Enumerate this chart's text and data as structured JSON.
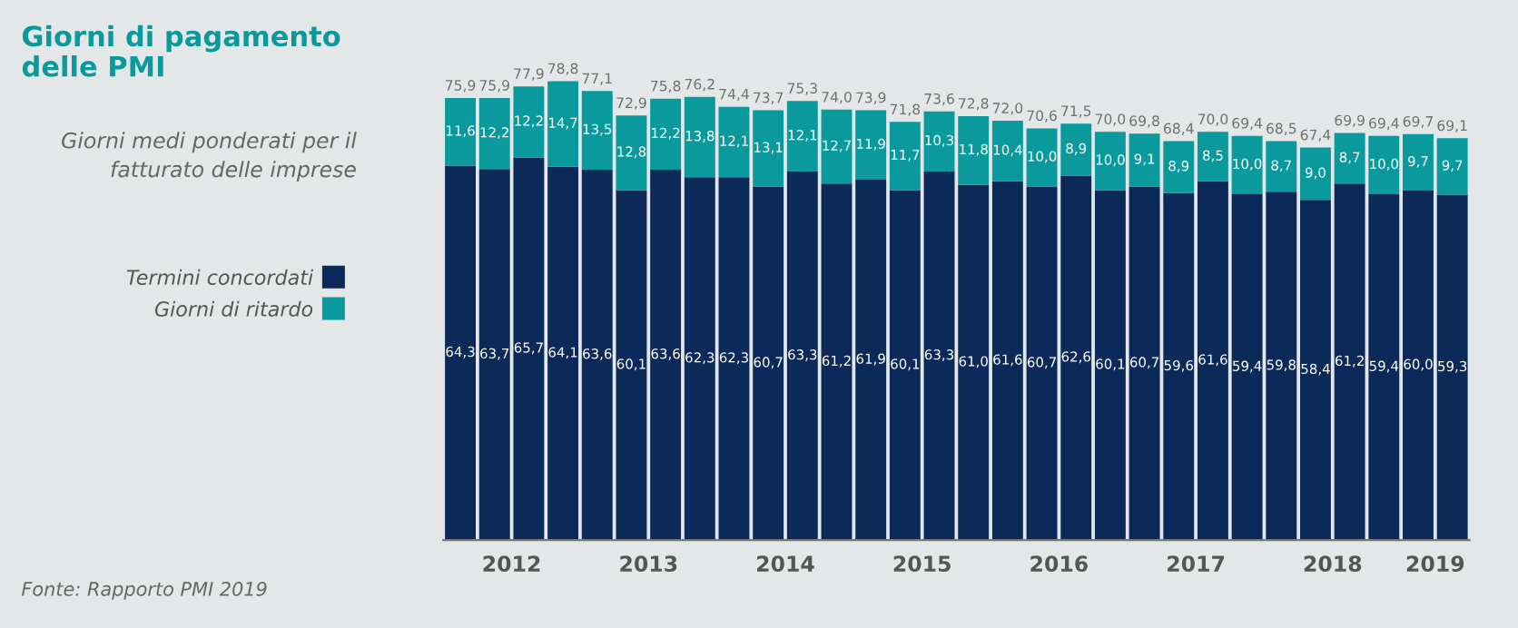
{
  "chart_data": {
    "type": "bar",
    "stacked": true,
    "title": "Giorni di pagamento\ndelle PMI",
    "subtitle": "Giorni medi ponderati per il\nfatturato delle imprese",
    "x": [
      2012.125,
      2012.375,
      2012.625,
      2012.875,
      2013.125,
      2013.375,
      2013.625,
      2013.875,
      2014.125,
      2014.375,
      2014.625,
      2014.875,
      2015.125,
      2015.375,
      2015.625,
      2015.875,
      2016.125,
      2016.375,
      2016.625,
      2016.875,
      2017.125,
      2017.375,
      2017.625,
      2017.875,
      2018.125,
      2018.375,
      2018.625,
      2018.875,
      2019.125,
      2019.375
    ],
    "xlim": [
      2012.0,
      2019.5
    ],
    "xticks": [
      {
        "value": 2012.5,
        "label": "2012"
      },
      {
        "value": 2013.5,
        "label": "2013"
      },
      {
        "value": 2014.5,
        "label": "2014"
      },
      {
        "value": 2015.5,
        "label": "2015"
      },
      {
        "value": 2016.5,
        "label": "2016"
      },
      {
        "value": 2017.5,
        "label": "2017"
      },
      {
        "value": 2018.5,
        "label": "2018"
      },
      {
        "value": 2019.25,
        "label": "2019"
      }
    ],
    "series": [
      {
        "name": "Termini concordati",
        "color": "#0b2a59",
        "values": [
          64.3,
          63.7,
          65.7,
          64.1,
          63.6,
          60.1,
          63.6,
          62.3,
          62.3,
          60.7,
          63.3,
          61.2,
          61.9,
          60.1,
          63.3,
          61.0,
          61.6,
          60.7,
          62.6,
          60.1,
          60.7,
          59.6,
          61.6,
          59.4,
          59.8,
          58.4,
          61.2,
          59.4,
          60.0,
          59.3
        ],
        "value_labels": [
          "64,3",
          "63,7",
          "65,7",
          "64,1",
          "63,6",
          "60,1",
          "63,6",
          "62,3",
          "62,3",
          "60,7",
          "63,3",
          "61,2",
          "61,9",
          "60,1",
          "63,3",
          "61,0",
          "61,6",
          "60,7",
          "62,6",
          "60,1",
          "60,7",
          "59,6",
          "61,6",
          "59,4",
          "59,8",
          "58,4",
          "61,2",
          "59,4",
          "60,0",
          "59,3"
        ]
      },
      {
        "name": "Giorni di ritardo",
        "color": "#0a9a9d",
        "values": [
          11.6,
          12.2,
          12.2,
          14.7,
          13.5,
          12.8,
          12.2,
          13.8,
          12.1,
          13.1,
          12.1,
          12.7,
          11.9,
          11.7,
          10.3,
          11.8,
          10.4,
          10.0,
          8.9,
          10.0,
          9.1,
          8.9,
          8.5,
          10.0,
          8.7,
          9.0,
          8.7,
          10.0,
          9.7,
          9.7
        ],
        "value_labels": [
          "11,6",
          "12,2",
          "12,2",
          "14,7",
          "13,5",
          "12,8",
          "12,2",
          "13,8",
          "12,1",
          "13,1",
          "12,1",
          "12,7",
          "11,9",
          "11,7",
          "10,3",
          "11,8",
          "10,4",
          "10,0",
          "8,9",
          "10,0",
          "9,1",
          "8,9",
          "8,5",
          "10,0",
          "8,7",
          "9,0",
          "8,7",
          "10,0",
          "9,7",
          "9,7"
        ]
      }
    ],
    "totals": [
      "75,9",
      "75,9",
      "77,9",
      "78,8",
      "77,1",
      "72,9",
      "75,8",
      "76,2",
      "74,4",
      "73,7",
      "75,3",
      "74,0",
      "73,9",
      "71,8",
      "73,6",
      "72,8",
      "72,0",
      "70,6",
      "71,5",
      "70,0",
      "69,8",
      "68,4",
      "70,0",
      "69,4",
      "68,5",
      "67,4",
      "69,9",
      "69,4",
      "69,7",
      "69,1"
    ],
    "legend": "left",
    "grid": false,
    "annotations": [
      "Fonte: Rapporto PMI 2019"
    ]
  }
}
